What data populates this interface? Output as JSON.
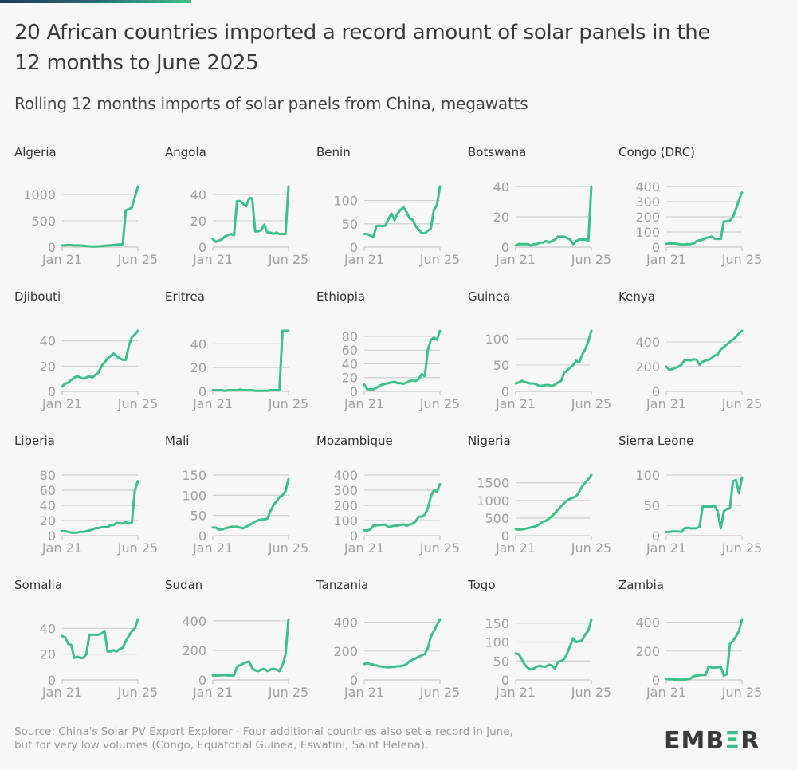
{
  "header": {
    "title": "20 African countries imported a record amount of solar panels in the 12 months to June 2025",
    "subtitle": "Rolling 12 months imports of solar panels from China, megawatts"
  },
  "footer": {
    "source": "Source: China's Solar PV Export Explorer · Four additional countries also set a record in June, but for very low volumes (Congo, Equatorial Guinea, Eswatini, Saint Helena).",
    "logo_prefix": "EMB",
    "logo_accent": "Ξ",
    "logo_suffix": "R"
  },
  "colors": {
    "line": "#3cc08a",
    "grid": "#cfcfcf",
    "tick_text": "#a0a0a0",
    "title_text": "#333333"
  },
  "chart_data": {
    "type": "line",
    "title": "20 African countries imported a record amount of solar panels in the 12 months to June 2025",
    "subtitle": "Rolling 12 months imports of solar panels from China, megawatts",
    "xlabel": "",
    "ylabel": "megawatts",
    "x_tick_labels": [
      "Jan 21",
      "Jun 25"
    ],
    "x_range": [
      "Jan 2021",
      "Jun 2025"
    ],
    "grid": true,
    "panels": [
      {
        "name": "Algeria",
        "yticks": [
          0,
          500,
          1000
        ],
        "ymax": 1150,
        "values": [
          30,
          35,
          40,
          38,
          30,
          35,
          30,
          25,
          20,
          15,
          12,
          10,
          15,
          20,
          25,
          30,
          35,
          40,
          45,
          50,
          55,
          700,
          720,
          750,
          950,
          1150
        ]
      },
      {
        "name": "Angola",
        "yticks": [
          0,
          20,
          40
        ],
        "ymax": 46,
        "values": [
          6,
          4,
          5,
          6,
          8,
          9,
          10,
          9,
          35,
          35,
          33,
          31,
          37,
          37,
          12,
          12,
          13,
          17,
          11,
          11,
          10,
          11,
          10,
          10,
          10,
          46
        ]
      },
      {
        "name": "Benin",
        "yticks": [
          0,
          50,
          100
        ],
        "ymax": 130,
        "values": [
          28,
          28,
          25,
          22,
          45,
          46,
          45,
          46,
          60,
          72,
          58,
          72,
          80,
          85,
          75,
          62,
          58,
          45,
          38,
          30,
          30,
          35,
          40,
          80,
          90,
          130
        ]
      },
      {
        "name": "Botswana",
        "yticks": [
          0,
          20,
          40
        ],
        "ymax": 40,
        "values": [
          1,
          2,
          2,
          2,
          2,
          1,
          2,
          2,
          3,
          3,
          4,
          3,
          4,
          5,
          7,
          7,
          7,
          6,
          5,
          2,
          4,
          5,
          5,
          5,
          4,
          40
        ]
      },
      {
        "name": "Congo (DRC)",
        "yticks": [
          0,
          100,
          200,
          300,
          400
        ],
        "ymax": 360,
        "values": [
          22,
          25,
          23,
          25,
          20,
          18,
          18,
          20,
          20,
          25,
          40,
          45,
          50,
          60,
          65,
          70,
          55,
          55,
          55,
          170,
          170,
          175,
          200,
          250,
          310,
          360
        ]
      },
      {
        "name": "Djibouti",
        "yticks": [
          0,
          20,
          40
        ],
        "ymax": 48,
        "values": [
          4,
          6,
          7,
          9,
          11,
          12,
          11,
          10,
          11,
          12,
          11,
          13,
          15,
          20,
          23,
          26,
          28,
          30,
          28,
          26,
          25,
          25,
          36,
          43,
          45,
          48
        ]
      },
      {
        "name": "Eritrea",
        "yticks": [
          0,
          20,
          40
        ],
        "ymax": 51,
        "values": [
          1,
          1,
          1,
          1,
          0.5,
          1,
          1,
          1,
          1,
          1.5,
          1,
          1,
          1,
          1,
          0.5,
          0.5,
          0.5,
          0.5,
          0.5,
          1,
          1,
          1,
          1,
          51,
          51,
          51
        ]
      },
      {
        "name": "Ethiopia",
        "yticks": [
          0,
          20,
          40,
          60,
          80
        ],
        "ymax": 88,
        "values": [
          10,
          3,
          3,
          3,
          5,
          8,
          10,
          11,
          12,
          13,
          14,
          12,
          12,
          11,
          13,
          15,
          16,
          15,
          18,
          25,
          22,
          60,
          75,
          78,
          75,
          88
        ]
      },
      {
        "name": "Guinea",
        "yticks": [
          0,
          50,
          100
        ],
        "ymax": 115,
        "values": [
          15,
          17,
          20,
          18,
          16,
          15,
          15,
          13,
          10,
          11,
          12,
          12,
          10,
          13,
          17,
          20,
          35,
          40,
          45,
          50,
          58,
          55,
          70,
          80,
          95,
          115
        ]
      },
      {
        "name": "Kenya",
        "yticks": [
          0,
          200,
          400
        ],
        "ymax": 490,
        "values": [
          200,
          175,
          180,
          190,
          200,
          215,
          250,
          255,
          250,
          260,
          255,
          215,
          240,
          250,
          255,
          270,
          290,
          300,
          340,
          360,
          380,
          400,
          420,
          440,
          470,
          490
        ]
      },
      {
        "name": "Liberia",
        "yticks": [
          0,
          20,
          40,
          60,
          80
        ],
        "ymax": 72,
        "values": [
          6,
          6,
          5,
          4,
          4,
          4,
          5,
          5,
          6,
          7,
          8,
          10,
          10,
          11,
          11,
          11,
          14,
          14,
          17,
          16,
          16,
          18,
          16,
          17,
          60,
          72
        ]
      },
      {
        "name": "Mali",
        "yticks": [
          0,
          50,
          100,
          150
        ],
        "ymax": 140,
        "values": [
          20,
          20,
          15,
          15,
          18,
          20,
          22,
          22,
          22,
          20,
          18,
          22,
          26,
          30,
          35,
          38,
          40,
          40,
          42,
          60,
          75,
          85,
          95,
          100,
          110,
          140
        ]
      },
      {
        "name": "Mozambique",
        "yticks": [
          0,
          100,
          200,
          300,
          400
        ],
        "ymax": 340,
        "values": [
          35,
          35,
          40,
          65,
          68,
          70,
          72,
          72,
          55,
          62,
          65,
          65,
          70,
          75,
          65,
          72,
          80,
          95,
          125,
          125,
          140,
          180,
          260,
          300,
          290,
          340
        ]
      },
      {
        "name": "Nigeria",
        "yticks": [
          0,
          500,
          1000,
          1500
        ],
        "ymax": 1720,
        "values": [
          180,
          170,
          175,
          190,
          210,
          230,
          250,
          280,
          330,
          400,
          420,
          480,
          560,
          650,
          740,
          830,
          920,
          1000,
          1050,
          1080,
          1120,
          1250,
          1400,
          1500,
          1600,
          1720
        ]
      },
      {
        "name": "Sierra Leone",
        "yticks": [
          0,
          50,
          100
        ],
        "ymax": 96,
        "values": [
          6,
          6,
          7,
          7,
          7,
          6,
          12,
          13,
          12,
          12,
          12,
          15,
          48,
          48,
          48,
          48,
          49,
          40,
          12,
          40,
          44,
          45,
          90,
          92,
          70,
          96
        ]
      },
      {
        "name": "Somalia",
        "yticks": [
          0,
          20,
          40
        ],
        "ymax": 47,
        "values": [
          34,
          33,
          28,
          27,
          17,
          18,
          17,
          17,
          20,
          35,
          35,
          35,
          35,
          36,
          38,
          22,
          22,
          23,
          22,
          24,
          25,
          30,
          34,
          38,
          40,
          47
        ]
      },
      {
        "name": "Sudan",
        "yticks": [
          0,
          200,
          400
        ],
        "ymax": 410,
        "values": [
          30,
          30,
          30,
          32,
          32,
          30,
          30,
          30,
          90,
          100,
          110,
          120,
          125,
          80,
          65,
          60,
          70,
          75,
          60,
          70,
          75,
          70,
          60,
          100,
          170,
          410
        ]
      },
      {
        "name": "Tanzania",
        "yticks": [
          0,
          200,
          400
        ],
        "ymax": 420,
        "values": [
          110,
          115,
          110,
          105,
          100,
          95,
          92,
          90,
          88,
          90,
          90,
          95,
          95,
          100,
          110,
          130,
          140,
          150,
          160,
          170,
          180,
          220,
          300,
          340,
          380,
          420
        ]
      },
      {
        "name": "Togo",
        "yticks": [
          0,
          50,
          100,
          150
        ],
        "ymax": 160,
        "values": [
          70,
          68,
          55,
          40,
          32,
          28,
          30,
          35,
          38,
          35,
          35,
          40,
          38,
          30,
          48,
          50,
          55,
          70,
          90,
          110,
          100,
          102,
          105,
          120,
          130,
          160
        ]
      },
      {
        "name": "Zambia",
        "yticks": [
          0,
          200,
          400
        ],
        "ymax": 420,
        "values": [
          8,
          5,
          4,
          3,
          2,
          2,
          3,
          5,
          10,
          25,
          30,
          32,
          35,
          35,
          95,
          85,
          85,
          88,
          90,
          30,
          40,
          250,
          270,
          300,
          340,
          420
        ]
      }
    ]
  }
}
